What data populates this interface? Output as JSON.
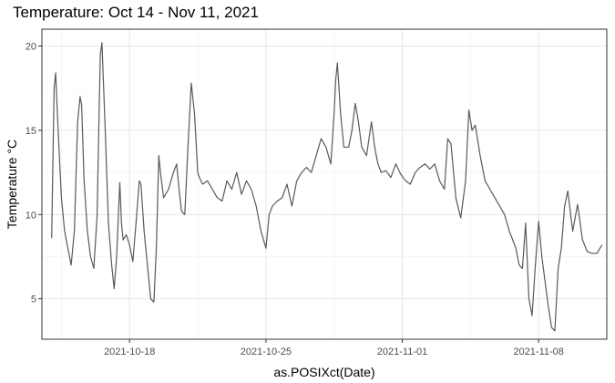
{
  "chart_data": {
    "type": "line",
    "title": "Temperature: Oct 14 - Nov 11, 2021",
    "xlabel": "as.POSIXct(Date)",
    "ylabel": "Temperature °C",
    "x_range": [
      "2021-10-13T12:00",
      "2021-11-11T12:00"
    ],
    "ylim": [
      2.6,
      21.0
    ],
    "y_ticks": [
      5,
      10,
      15,
      20
    ],
    "x_ticks": [
      "2021-10-18",
      "2021-10-25",
      "2021-11-01",
      "2021-11-08"
    ],
    "grid": true,
    "line_color": "#595959",
    "series": [
      {
        "x": [
          "2021-10-14T00:00",
          "2021-10-14T03:00",
          "2021-10-14T05:00",
          "2021-10-14T08:00",
          "2021-10-14T12:00",
          "2021-10-14T16:00",
          "2021-10-14T20:00",
          "2021-10-15T00:00",
          "2021-10-15T04:00",
          "2021-10-15T08:00",
          "2021-10-15T11:00",
          "2021-10-15T13:00",
          "2021-10-15T16:00",
          "2021-10-15T20:00",
          "2021-10-16T00:00",
          "2021-10-16T04:00",
          "2021-10-16T08:00",
          "2021-10-16T10:00",
          "2021-10-16T12:00",
          "2021-10-16T14:00",
          "2021-10-16T18:00",
          "2021-10-16T22:00",
          "2021-10-17T02:00",
          "2021-10-17T05:00",
          "2021-10-17T08:00",
          "2021-10-17T12:00",
          "2021-10-17T14:00",
          "2021-10-17T16:00",
          "2021-10-17T20:00",
          "2021-10-18T00:00",
          "2021-10-18T04:00",
          "2021-10-18T08:00",
          "2021-10-18T12:00",
          "2021-10-18T14:00",
          "2021-10-18T18:00",
          "2021-10-18T22:00",
          "2021-10-19T02:00",
          "2021-10-19T06:00",
          "2021-10-19T09:00",
          "2021-10-19T12:00",
          "2021-10-19T14:00",
          "2021-10-19T18:00",
          "2021-10-20T00:00",
          "2021-10-20T06:00",
          "2021-10-20T10:00",
          "2021-10-20T13:00",
          "2021-10-20T16:00",
          "2021-10-20T20:00",
          "2021-10-21T00:00",
          "2021-10-21T04:00",
          "2021-10-21T08:00",
          "2021-10-21T12:00",
          "2021-10-21T14:00",
          "2021-10-21T18:00",
          "2021-10-22T00:00",
          "2021-10-22T06:00",
          "2021-10-22T12:00",
          "2021-10-22T18:00",
          "2021-10-23T00:00",
          "2021-10-23T06:00",
          "2021-10-23T12:00",
          "2021-10-23T18:00",
          "2021-10-24T00:00",
          "2021-10-24T06:00",
          "2021-10-24T12:00",
          "2021-10-24T18:00",
          "2021-10-25T00:00",
          "2021-10-25T04:00",
          "2021-10-25T08:00",
          "2021-10-25T14:00",
          "2021-10-25T20:00",
          "2021-10-26T02:00",
          "2021-10-26T08:00",
          "2021-10-26T14:00",
          "2021-10-26T20:00",
          "2021-10-27T02:00",
          "2021-10-27T08:00",
          "2021-10-27T14:00",
          "2021-10-27T20:00",
          "2021-10-28T02:00",
          "2021-10-28T08:00",
          "2021-10-28T12:00",
          "2021-10-28T14:00",
          "2021-10-28T16:00",
          "2021-10-28T20:00",
          "2021-10-29T00:00",
          "2021-10-29T06:00",
          "2021-10-29T10:00",
          "2021-10-29T14:00",
          "2021-10-29T18:00",
          "2021-10-29T22:00",
          "2021-10-30T04:00",
          "2021-10-30T10:00",
          "2021-10-30T14:00",
          "2021-10-30T18:00",
          "2021-10-30T22:00",
          "2021-10-31T04:00",
          "2021-10-31T10:00",
          "2021-10-31T16:00",
          "2021-10-31T22:00",
          "2021-11-01T04:00",
          "2021-11-01T10:00",
          "2021-11-01T16:00",
          "2021-11-01T22:00",
          "2021-11-02T04:00",
          "2021-11-02T10:00",
          "2021-11-02T16:00",
          "2021-11-02T22:00",
          "2021-11-03T04:00",
          "2021-11-03T08:00",
          "2021-11-03T12:00",
          "2021-11-03T18:00",
          "2021-11-04T00:00",
          "2021-11-04T06:00",
          "2021-11-04T10:00",
          "2021-11-04T14:00",
          "2021-11-04T18:00",
          "2021-11-05T00:00",
          "2021-11-05T06:00",
          "2021-11-05T12:00",
          "2021-11-05T18:00",
          "2021-11-06T00:00",
          "2021-11-06T06:00",
          "2021-11-06T12:00",
          "2021-11-06T16:00",
          "2021-11-06T20:00",
          "2021-11-07T00:00",
          "2021-11-07T04:00",
          "2021-11-07T08:00",
          "2021-11-07T12:00",
          "2021-11-07T16:00",
          "2021-11-07T20:00",
          "2021-11-08T00:00",
          "2021-11-08T04:00",
          "2021-11-08T08:00",
          "2021-11-08T12:00",
          "2021-11-08T16:00",
          "2021-11-08T20:00",
          "2021-11-09T00:00",
          "2021-11-09T04:00",
          "2021-11-09T08:00",
          "2021-11-09T12:00",
          "2021-11-09T18:00",
          "2021-11-10T00:00",
          "2021-11-10T06:00",
          "2021-11-10T12:00",
          "2021-11-10T18:00",
          "2021-11-11T00:00",
          "2021-11-11T06:00"
        ],
        "y": [
          8.6,
          17.5,
          18.4,
          15.0,
          11.0,
          9.0,
          8.0,
          7.0,
          9.0,
          15.5,
          17.0,
          16.5,
          12.0,
          9.0,
          7.5,
          6.8,
          10.0,
          15.0,
          19.5,
          20.2,
          15.0,
          9.5,
          7.0,
          5.6,
          7.5,
          11.9,
          9.5,
          8.5,
          8.8,
          8.2,
          7.2,
          9.5,
          12.0,
          11.8,
          9.0,
          7.0,
          5.0,
          4.8,
          8.0,
          13.5,
          12.5,
          11.0,
          11.5,
          12.5,
          13.0,
          11.5,
          10.2,
          10.0,
          14.0,
          17.8,
          16.0,
          12.5,
          12.2,
          11.8,
          12.0,
          11.5,
          11.0,
          10.8,
          12.0,
          11.5,
          12.5,
          11.2,
          12.0,
          11.5,
          10.5,
          9.0,
          8.0,
          10.0,
          10.5,
          10.8,
          11.0,
          11.8,
          10.5,
          12.0,
          12.5,
          12.8,
          12.5,
          13.5,
          14.5,
          14.0,
          13.0,
          16.0,
          18.0,
          19.0,
          16.0,
          14.0,
          14.0,
          15.0,
          16.6,
          15.5,
          14.0,
          13.5,
          15.5,
          14.0,
          13.0,
          12.5,
          12.6,
          12.2,
          13.0,
          12.4,
          12.0,
          11.8,
          12.5,
          12.8,
          13.0,
          12.7,
          13.0,
          12.0,
          11.5,
          14.5,
          14.2,
          11.0,
          9.8,
          12.0,
          16.2,
          15.0,
          15.3,
          13.5,
          12.0,
          11.5,
          11.0,
          10.5,
          10.0,
          9.0,
          8.5,
          8.0,
          7.0,
          6.8,
          9.5,
          5.0,
          4.0,
          7.0,
          9.6,
          7.5,
          6.0,
          4.5,
          3.3,
          3.1,
          6.8,
          8.0,
          10.5,
          11.4,
          9.0,
          10.6,
          8.5,
          7.8,
          7.7,
          7.7,
          8.2
        ]
      }
    ]
  }
}
